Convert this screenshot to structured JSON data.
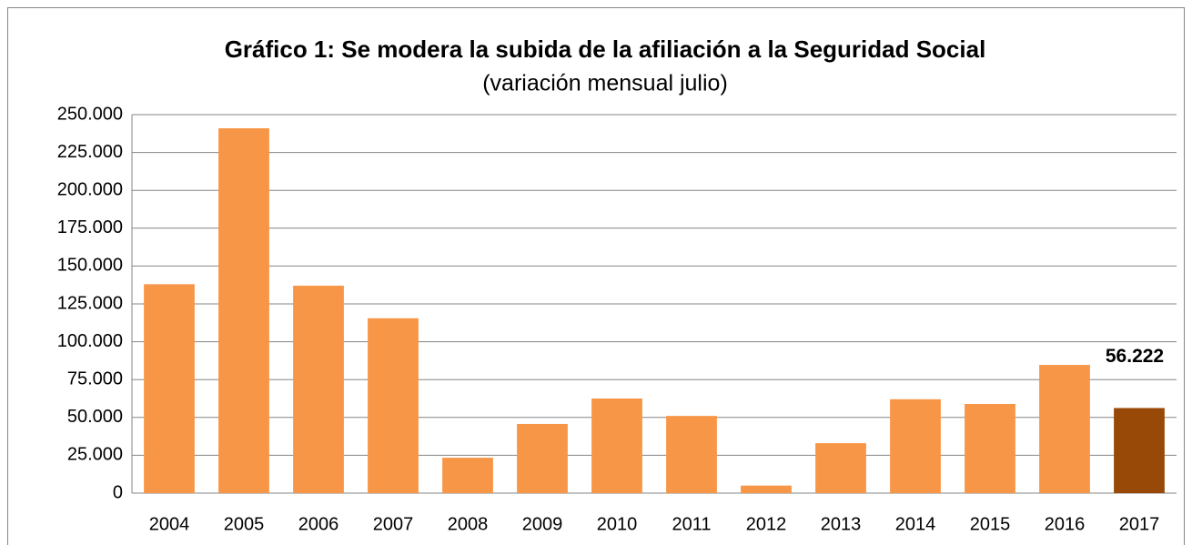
{
  "chart_data": {
    "type": "bar",
    "title": "Gráfico 1: Se modera la subida de la afiliación a la Seguridad Social",
    "subtitle": "(variación mensual julio)",
    "categories": [
      "2004",
      "2005",
      "2006",
      "2007",
      "2008",
      "2009",
      "2010",
      "2011",
      "2012",
      "2013",
      "2014",
      "2015",
      "2016",
      "2017"
    ],
    "values": [
      138000,
      241000,
      137000,
      115500,
      23400,
      45700,
      62500,
      51000,
      5000,
      33000,
      62000,
      58900,
      84700,
      56222
    ],
    "value_labels": [
      null,
      null,
      null,
      null,
      null,
      null,
      null,
      null,
      null,
      null,
      null,
      null,
      null,
      "56.222"
    ],
    "colors": [
      "#f79646",
      "#f79646",
      "#f79646",
      "#f79646",
      "#f79646",
      "#f79646",
      "#f79646",
      "#f79646",
      "#f79646",
      "#f79646",
      "#f79646",
      "#f79646",
      "#f79646",
      "#984807"
    ],
    "ylim": [
      0,
      250000
    ],
    "yticks": [
      0,
      {
        "value": 25000,
        "label": "25.000"
      },
      {
        "value": 50000,
        "label": "50.000"
      },
      {
        "value": 75000,
        "label": "75.000"
      },
      {
        "value": 100000,
        "label": "100.000"
      },
      {
        "value": 125000,
        "label": "125.000"
      },
      {
        "value": 150000,
        "label": "150.000"
      },
      {
        "value": 175000,
        "label": "175.000"
      },
      {
        "value": 200000,
        "label": "200.000"
      },
      {
        "value": 225000,
        "label": "225.000"
      },
      {
        "value": 250000,
        "label": "250.000"
      }
    ],
    "grid": true
  }
}
